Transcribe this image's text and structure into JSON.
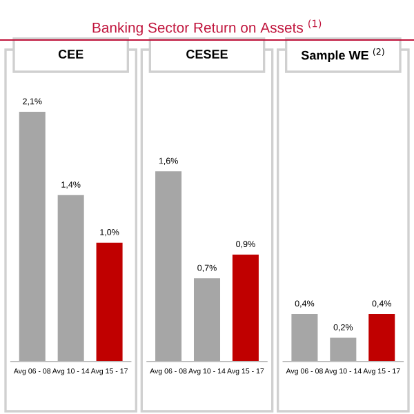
{
  "chart_data": [
    {
      "type": "bar",
      "title": "CEE",
      "annotations": [
        "Banking Sector Return on Assets $^{(1)}$"
      ],
      "categories": [
        "Avg 06 - 08",
        "Avg 10 - 14",
        "Avg 15 - 17"
      ],
      "values": [
        2.1,
        1.4,
        1.0
      ],
      "colors": [
        "#a6a6a6",
        "#a6a6a6",
        "#c00000"
      ],
      "value_labels": [
        "2,1%",
        "1,4%",
        "1,0%"
      ],
      "tick_labels": "x",
      "grid": false,
      "legend": false
    },
    {
      "type": "bar",
      "title": "CESEE",
      "categories": [
        "Avg 06 - 08",
        "Avg 10 - 14",
        "Avg 15 - 17"
      ],
      "values": [
        1.6,
        0.7,
        0.9
      ],
      "colors": [
        "#a6a6a6",
        "#a6a6a6",
        "#c00000"
      ],
      "value_labels": [
        "1,6%",
        "0,7%",
        "0,9%"
      ],
      "tick_labels": "x",
      "grid": false,
      "legend": false
    },
    {
      "type": "bar",
      "title": "Sample WE $^{(2)}$",
      "categories": [
        "Avg 06 - 08",
        "Avg 10 - 14",
        "Avg 15 - 17"
      ],
      "values": [
        0.4,
        0.2,
        0.4
      ],
      "colors": [
        "#a6a6a6",
        "#a6a6a6",
        "#c00000"
      ],
      "value_labels": [
        "0,4%",
        "0,2%",
        "0,4%"
      ],
      "tick_labels": "x",
      "grid": false,
      "legend": false
    }
  ]
}
